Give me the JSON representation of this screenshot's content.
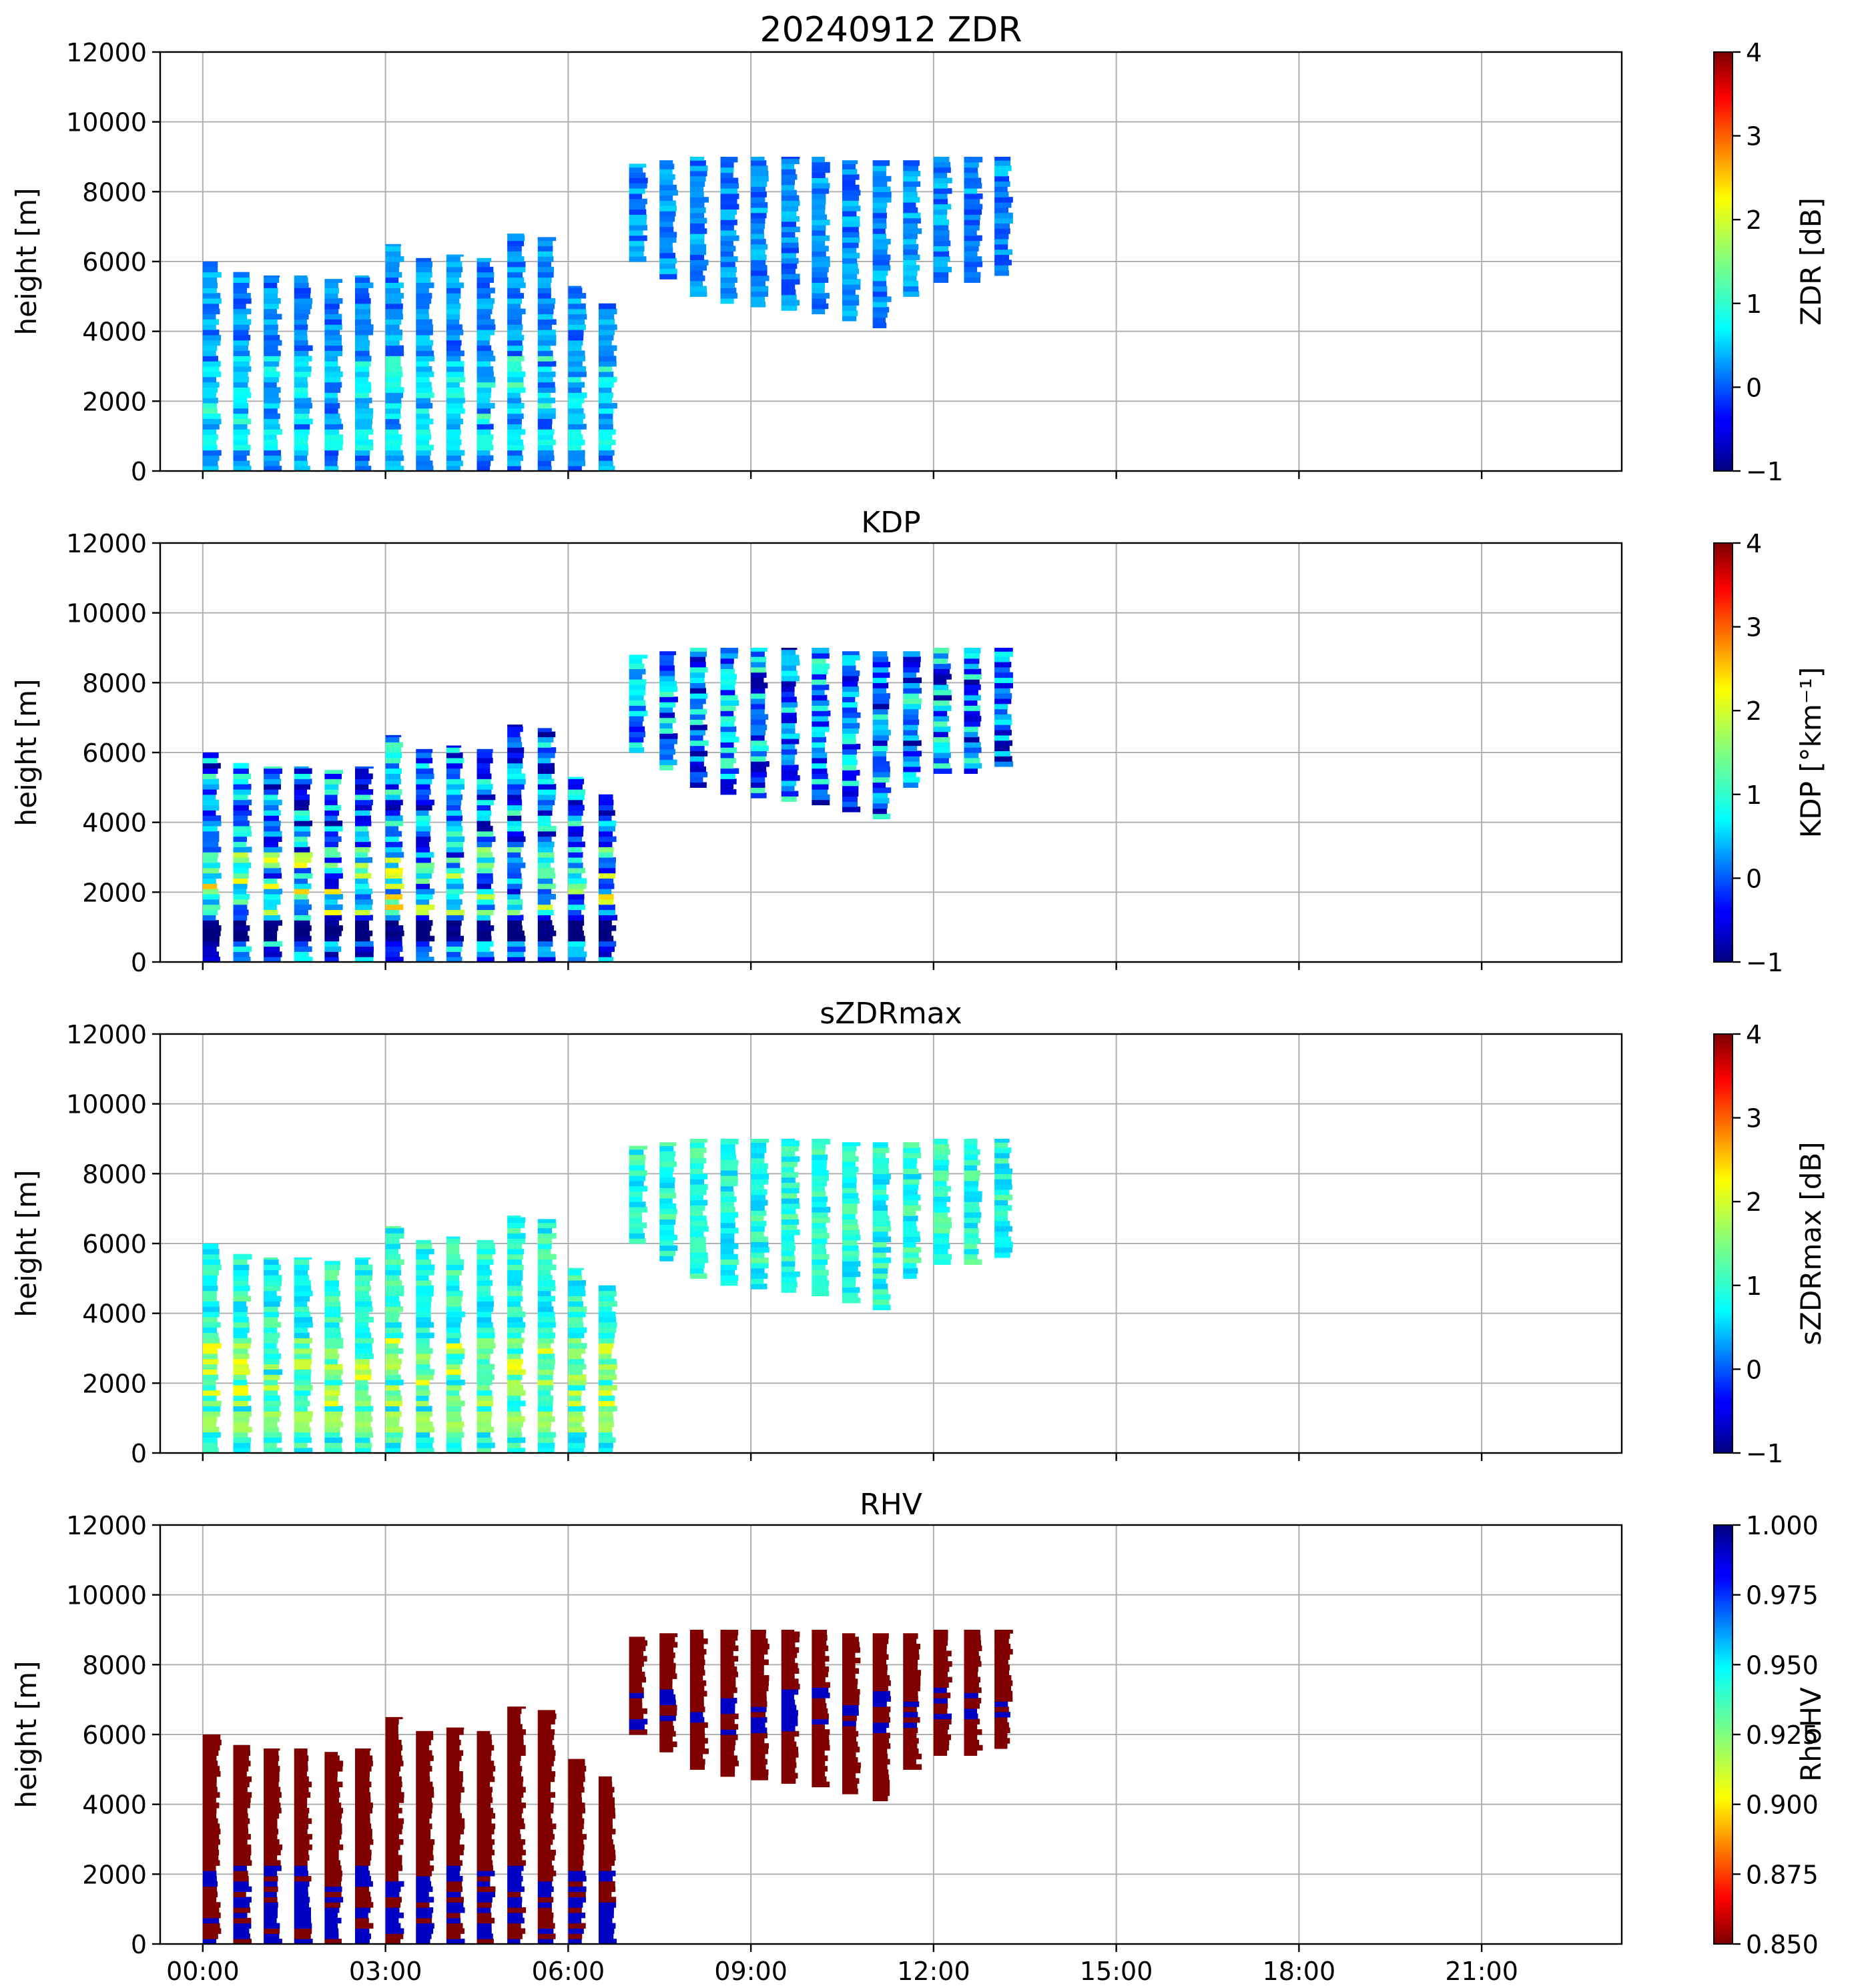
{
  "chart_data": {
    "type": "heatmap",
    "figure_title_date": "20240912",
    "x_tick_labels": [
      "00:00",
      "03:00",
      "06:00",
      "09:00",
      "12:00",
      "15:00",
      "18:00",
      "21:00"
    ],
    "x_ticks_hours": [
      0,
      3,
      6,
      9,
      12,
      15,
      18,
      21
    ],
    "x_range_hours": [
      -0.7,
      23.3
    ],
    "y_tick_labels": [
      "0",
      "2000",
      "4000",
      "6000",
      "8000",
      "10000",
      "12000"
    ],
    "y_ticks": [
      0,
      2000,
      4000,
      6000,
      8000,
      10000,
      12000
    ],
    "ylim": [
      0,
      12000
    ],
    "ylabel": "height [m]",
    "grid": true,
    "colormap": "jet",
    "scan_times_hours": [
      0.0,
      0.5,
      1.0,
      1.5,
      2.0,
      2.5,
      3.0,
      3.5,
      4.0,
      4.5,
      5.0,
      5.5,
      6.0,
      6.5,
      7.0,
      7.5,
      8.0,
      8.5,
      9.0,
      9.5,
      10.0,
      10.5,
      11.0,
      11.5,
      12.0,
      12.5,
      13.0
    ],
    "echo_top_m": [
      6000,
      5700,
      5600,
      5600,
      5500,
      5600,
      6500,
      6100,
      6200,
      6100,
      6800,
      6700,
      5300,
      4800,
      8800,
      8900,
      9000,
      9000,
      9000,
      9000,
      9000,
      8900,
      8900,
      8900,
      9000,
      9000,
      9000
    ],
    "echo_base_m": [
      0,
      0,
      0,
      0,
      0,
      0,
      0,
      0,
      0,
      0,
      0,
      0,
      0,
      0,
      6000,
      5500,
      5000,
      4800,
      4700,
      4600,
      4500,
      4300,
      4100,
      5000,
      5400,
      5400,
      5600
    ],
    "panels": [
      {
        "title": "ZDR",
        "colorbar_label": "ZDR [dB]",
        "clim": [
          -1,
          4
        ],
        "colorbar_reversed": false,
        "colorbar_tick_labels": [
          "−1",
          "0",
          "1",
          "2",
          "3",
          "4"
        ],
        "colorbar_ticks": [
          -1,
          0,
          1,
          2,
          3,
          4
        ],
        "typical_value": 0.3,
        "melting_layer_value": 0.9,
        "max_value_in_rain": 1.8
      },
      {
        "title": "KDP",
        "colorbar_label": "KDP [°km⁻¹]",
        "clim": [
          -1,
          4
        ],
        "colorbar_reversed": false,
        "colorbar_tick_labels": [
          "−1",
          "0",
          "1",
          "2",
          "3",
          "4"
        ],
        "colorbar_ticks": [
          -1,
          0,
          1,
          2,
          3,
          4
        ],
        "typical_value": 0.2,
        "melting_layer_value": -1.0,
        "max_value_in_rain": 3.5
      },
      {
        "title": "sZDRmax",
        "colorbar_label": "sZDRmax [dB]",
        "clim": [
          -1,
          4
        ],
        "colorbar_reversed": false,
        "colorbar_tick_labels": [
          "−1",
          "0",
          "1",
          "2",
          "3",
          "4"
        ],
        "colorbar_ticks": [
          -1,
          0,
          1,
          2,
          3,
          4
        ],
        "typical_value": 1.0,
        "melting_layer_value": 1.6,
        "max_value_in_rain": 3.0
      },
      {
        "title": "RHV",
        "colorbar_label": "RhoHV",
        "clim": [
          0.85,
          1.0
        ],
        "colorbar_reversed": true,
        "colorbar_tick_labels": [
          "0.850",
          "0.875",
          "0.900",
          "0.925",
          "0.950",
          "0.975",
          "1.000"
        ],
        "colorbar_ticks": [
          0.85,
          0.875,
          0.9,
          0.925,
          0.95,
          0.975,
          1.0
        ],
        "typical_value": 0.85,
        "melting_layer_value": 0.92,
        "max_value_in_rain": 0.99
      }
    ]
  }
}
